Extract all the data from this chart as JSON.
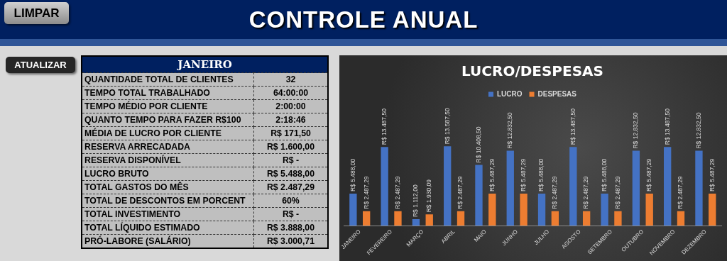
{
  "chart_data": [
    {
      "type": "other",
      "title": "CONTROLE ANUAL",
      "annotations": [
        "LIMPAR",
        "ATUALIZAR"
      ]
    },
    {
      "type": "other",
      "title": "JANEIRO",
      "annotations": [
        "QUANTIDADE TOTAL DE CLIENTES",
        "32",
        "TEMPO TOTAL TRABALHADO",
        "64:00:00",
        "TEMPO MÉDIO POR CLIENTE",
        "2:00:00",
        "QUANTO TEMPO PARA FAZER R$100",
        "2:18:46",
        "MÉDIA DE LUCRO POR CLIENTE",
        "R$ 171,50",
        "RESERVA ARRECADADA",
        "R$ 1.600,00",
        "RESERVA DISPONÍVEL",
        "R$ -",
        "LUCRO BRUTO",
        "R$ 5.488,00",
        "TOTAL GASTOS DO MÊS",
        "R$ 2.487,29",
        "TOTAL DE DESCONTOS EM PORCENT",
        "60%",
        "TOTAL INVESTIMENTO",
        "R$ -",
        "TOTAL LÍQUIDO ESTIMADO",
        "R$ 3.888,00",
        "PRÓ-LABORE (SALÁRIO)",
        "R$ 3.000,71"
      ]
    },
    {
      "type": "bar",
      "title": "LUCRO/DESPESAS",
      "legend": "top",
      "grid": false,
      "categories": [
        "JANEIRO",
        "FEVEREIRO",
        "MARÇO",
        "ABRIL",
        "MAIO",
        "JUNHO",
        "JULHO",
        "AGOSTO",
        "SETEMBRO",
        "OUTUBRO",
        "NOVEMBRO",
        "DEZEMBRO"
      ],
      "series": [
        {
          "name": "LUCRO",
          "color": "#4472c4",
          "values": [
            5488,
            13487.5,
            1112,
            13587.5,
            10408.5,
            12832.5,
            5488,
            13487.5,
            5488,
            12832.5,
            13487.5,
            12832.5
          ],
          "value_labels": [
            "R$ 5.488,00",
            "R$ 13.487,50",
            "R$ 1.112,00",
            "R$ 13.587,50",
            "R$ 10.408,50",
            "R$ 12.832,50",
            "R$ 5.488,00",
            "R$ 13.487,50",
            "R$ 5.488,00",
            "R$ 12.832,50",
            "R$ 13.487,50",
            "R$ 12.832,50"
          ]
        },
        {
          "name": "DESPESAS",
          "color": "#ed7d31",
          "values": [
            2487.29,
            2487.29,
            1930.09,
            2487.29,
            5487.29,
            5487.29,
            2487.29,
            2487.29,
            2487.29,
            5487.29,
            2487.29,
            5487.29
          ],
          "value_labels": [
            "R$ 2.487,29",
            "R$ 2.487,29",
            "R$ 1.930,09",
            "R$ 2.487,29",
            "R$ 5.487,29",
            "R$ 5.487,29",
            "R$ 2.487,29",
            "R$ 2.487,29",
            "R$ 2.487,29",
            "R$ 5.487,29",
            "R$ 2.487,29",
            "R$ 5.487,29"
          ]
        }
      ]
    }
  ]
}
